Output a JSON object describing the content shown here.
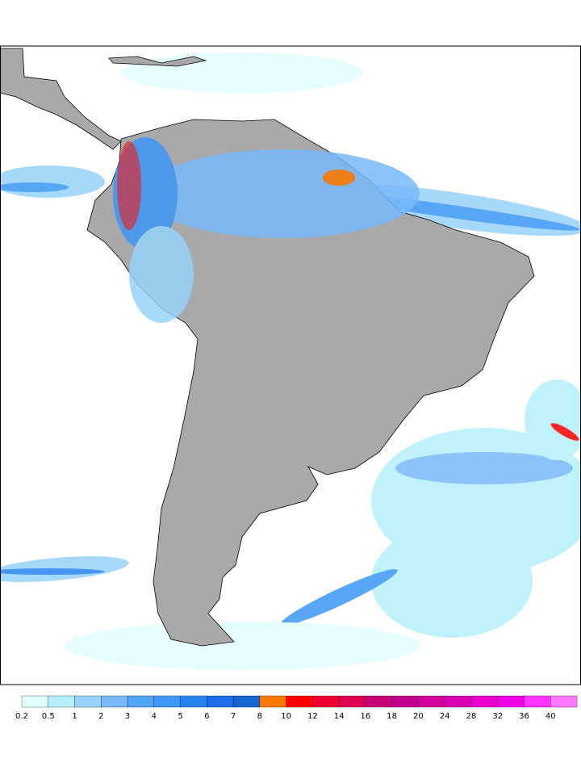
{
  "colorbar": {
    "levels": [
      0.2,
      0.5,
      1,
      2,
      3,
      4,
      5,
      6,
      7,
      8,
      10,
      12,
      14,
      16,
      18,
      20,
      24,
      28,
      32,
      36,
      40
    ],
    "colors": [
      "#e1ffff",
      "#b4f0fa",
      "#96d2fa",
      "#78b9fa",
      "#50a5f5",
      "#3c97f5",
      "#2883f0",
      "#1e6eeb",
      "#1464d2",
      "#fa7800",
      "#ff0000",
      "#f00032",
      "#dc0050",
      "#c80078",
      "#c3008c",
      "#d2009b",
      "#dc00b4",
      "#eb00cd",
      "#f000e6",
      "#ff32ff",
      "#ff78ff"
    ]
  }
}
